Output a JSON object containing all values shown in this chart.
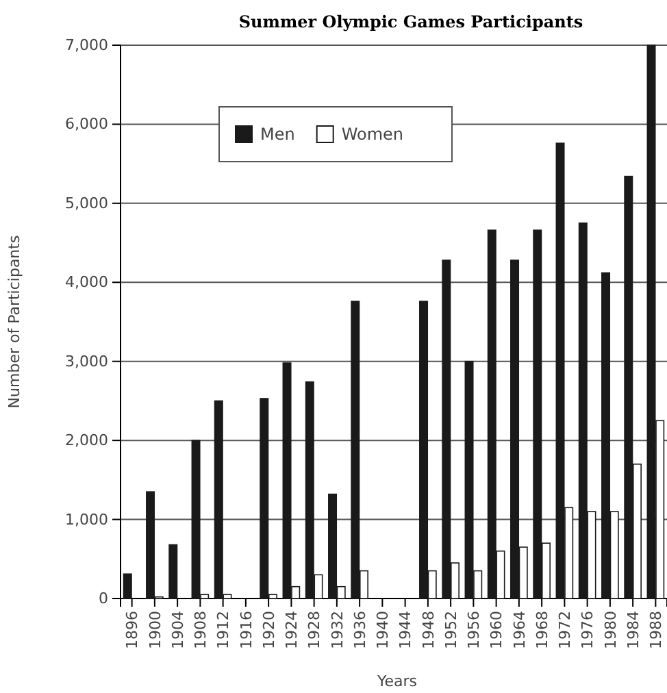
{
  "chart_data": {
    "type": "bar",
    "title": "Summer Olympic Games Participants",
    "xlabel": "Years",
    "ylabel": "Number of Participants",
    "categories": [
      "1896",
      "1900",
      "1904",
      "1908",
      "1912",
      "1916",
      "1920",
      "1924",
      "1928",
      "1932",
      "1936",
      "1940",
      "1944",
      "1948",
      "1952",
      "1956",
      "1960",
      "1964",
      "1968",
      "1972",
      "1976",
      "1980",
      "1984",
      "1988"
    ],
    "series": [
      {
        "name": "Men",
        "color": "#1a1a1a",
        "values": [
          310,
          1350,
          680,
          2000,
          2500,
          null,
          2530,
          2980,
          2740,
          1320,
          3760,
          null,
          null,
          3760,
          4280,
          3000,
          4660,
          4280,
          4660,
          5760,
          4750,
          4120,
          5340,
          7000
        ]
      },
      {
        "name": "Women",
        "color": "#ffffff",
        "values": [
          0,
          20,
          0,
          50,
          50,
          null,
          50,
          150,
          300,
          150,
          350,
          null,
          null,
          350,
          450,
          350,
          600,
          650,
          700,
          1150,
          1100,
          1100,
          1700,
          2250
        ]
      }
    ],
    "ylim": [
      0,
      7000
    ],
    "yticks": [
      {
        "value": 0,
        "label": "0"
      },
      {
        "value": 1000,
        "label": "1,000"
      },
      {
        "value": 2000,
        "label": "2,000"
      },
      {
        "value": 3000,
        "label": "3,000"
      },
      {
        "value": 4000,
        "label": "4,000"
      },
      {
        "value": 5000,
        "label": "5,000"
      },
      {
        "value": 6000,
        "label": "6,000"
      },
      {
        "value": 7000,
        "label": "7,000"
      }
    ],
    "grid": "y",
    "legend": "top left"
  }
}
